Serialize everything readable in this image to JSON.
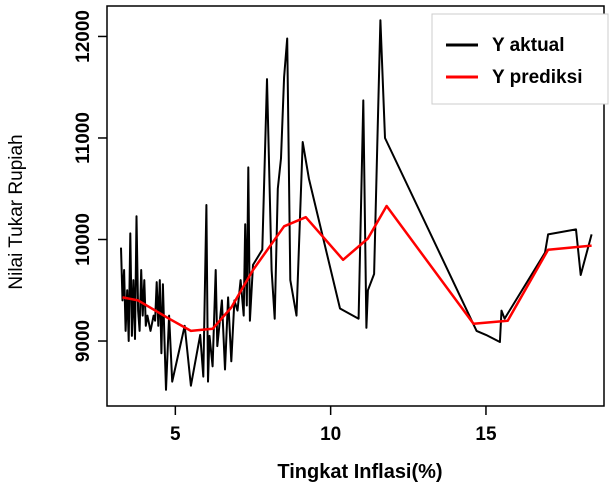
{
  "chart_data": {
    "type": "line",
    "xlabel": "Tingkat Inflasi(%)",
    "ylabel": "Nilai Tukar Rupiah",
    "xlim": [
      2.8,
      18.8
    ],
    "ylim": [
      8360,
      12300
    ],
    "x_ticks": [
      5,
      10,
      15
    ],
    "y_ticks": [
      9000,
      10000,
      11000,
      12000
    ],
    "legend_position": "top-right",
    "series": [
      {
        "name": "Y aktual",
        "color": "#000000",
        "points": [
          [
            3.25,
            9920
          ],
          [
            3.3,
            9400
          ],
          [
            3.35,
            9700
          ],
          [
            3.4,
            9100
          ],
          [
            3.45,
            9500
          ],
          [
            3.5,
            9000
          ],
          [
            3.55,
            10060
          ],
          [
            3.6,
            9050
          ],
          [
            3.65,
            9600
          ],
          [
            3.7,
            9020
          ],
          [
            3.75,
            10230
          ],
          [
            3.8,
            9300
          ],
          [
            3.85,
            9100
          ],
          [
            3.9,
            9700
          ],
          [
            3.95,
            9250
          ],
          [
            4.0,
            9600
          ],
          [
            4.05,
            9150
          ],
          [
            4.1,
            9250
          ],
          [
            4.2,
            9100
          ],
          [
            4.3,
            9250
          ],
          [
            4.35,
            9200
          ],
          [
            4.4,
            9580
          ],
          [
            4.45,
            9150
          ],
          [
            4.5,
            9600
          ],
          [
            4.55,
            8880
          ],
          [
            4.6,
            9560
          ],
          [
            4.65,
            9000
          ],
          [
            4.7,
            8520
          ],
          [
            4.8,
            9250
          ],
          [
            4.9,
            8600
          ],
          [
            5.3,
            9150
          ],
          [
            5.5,
            8560
          ],
          [
            5.8,
            9060
          ],
          [
            5.9,
            8650
          ],
          [
            6.0,
            10340
          ],
          [
            6.05,
            8600
          ],
          [
            6.1,
            9050
          ],
          [
            6.2,
            8750
          ],
          [
            6.3,
            9700
          ],
          [
            6.35,
            8950
          ],
          [
            6.5,
            9400
          ],
          [
            6.6,
            8720
          ],
          [
            6.7,
            9430
          ],
          [
            6.8,
            8800
          ],
          [
            6.9,
            9400
          ],
          [
            7.0,
            9300
          ],
          [
            7.1,
            9600
          ],
          [
            7.2,
            9250
          ],
          [
            7.25,
            10150
          ],
          [
            7.3,
            9350
          ],
          [
            7.35,
            10710
          ],
          [
            7.4,
            9200
          ],
          [
            7.5,
            9750
          ],
          [
            7.8,
            9900
          ],
          [
            7.95,
            11580
          ],
          [
            8.1,
            9700
          ],
          [
            8.2,
            9220
          ],
          [
            8.3,
            10500
          ],
          [
            8.4,
            10800
          ],
          [
            8.5,
            11600
          ],
          [
            8.6,
            11980
          ],
          [
            8.7,
            9600
          ],
          [
            8.9,
            9250
          ],
          [
            9.1,
            10960
          ],
          [
            9.3,
            10600
          ],
          [
            10.3,
            9320
          ],
          [
            10.9,
            9220
          ],
          [
            11.05,
            11370
          ],
          [
            11.15,
            9130
          ],
          [
            11.2,
            9500
          ],
          [
            11.4,
            9660
          ],
          [
            11.5,
            10900
          ],
          [
            11.6,
            12160
          ],
          [
            11.75,
            11000
          ],
          [
            14.7,
            9100
          ],
          [
            15.0,
            9060
          ],
          [
            15.45,
            8990
          ],
          [
            15.5,
            9300
          ],
          [
            15.6,
            9220
          ],
          [
            16.9,
            9870
          ],
          [
            17.0,
            10050
          ],
          [
            17.9,
            10100
          ],
          [
            18.05,
            9650
          ],
          [
            18.4,
            10050
          ]
        ]
      },
      {
        "name": "Y prediksi",
        "color": "#ff0000",
        "points": [
          [
            3.3,
            9430
          ],
          [
            3.8,
            9400
          ],
          [
            4.8,
            9220
          ],
          [
            5.5,
            9100
          ],
          [
            6.2,
            9120
          ],
          [
            6.8,
            9330
          ],
          [
            7.5,
            9700
          ],
          [
            8.5,
            10130
          ],
          [
            9.2,
            10220
          ],
          [
            10.4,
            9800
          ],
          [
            11.2,
            10010
          ],
          [
            11.8,
            10330
          ],
          [
            14.6,
            9170
          ],
          [
            15.7,
            9200
          ],
          [
            17.0,
            9900
          ],
          [
            18.4,
            9940
          ]
        ]
      }
    ]
  }
}
